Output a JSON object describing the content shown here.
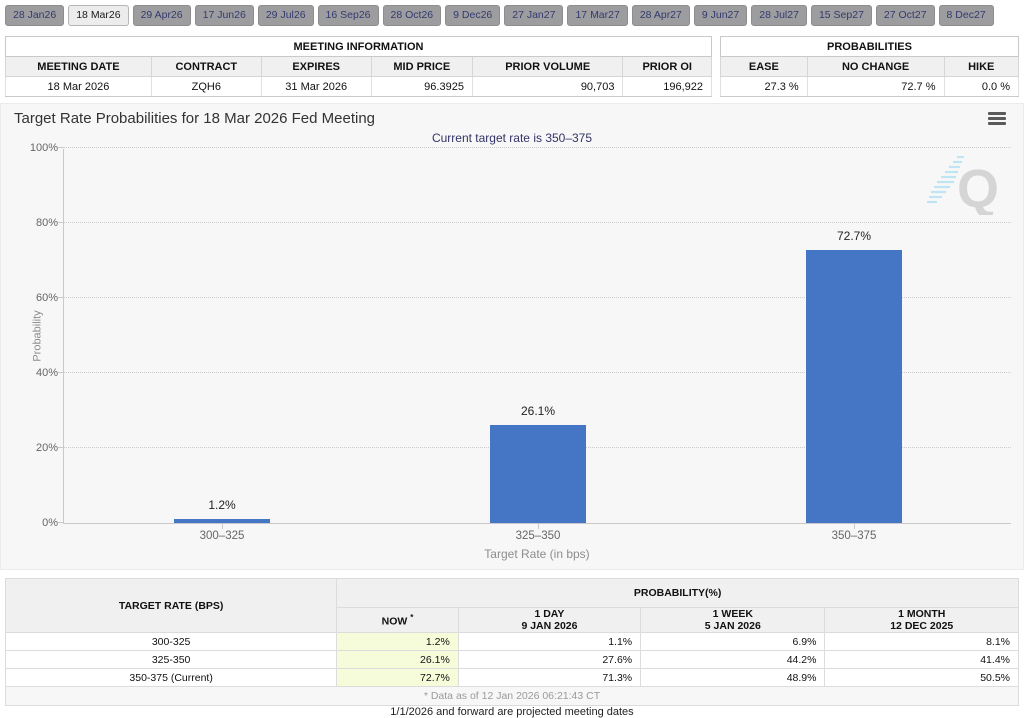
{
  "tabs": {
    "items": [
      {
        "label": "28 Jan26",
        "selected": false
      },
      {
        "label": "18 Mar26",
        "selected": true
      },
      {
        "label": "29 Apr26",
        "selected": false
      },
      {
        "label": "17 Jun26",
        "selected": false
      },
      {
        "label": "29 Jul26",
        "selected": false
      },
      {
        "label": "16 Sep26",
        "selected": false
      },
      {
        "label": "28 Oct26",
        "selected": false
      },
      {
        "label": "9 Dec26",
        "selected": false
      },
      {
        "label": "27 Jan27",
        "selected": false
      },
      {
        "label": "17 Mar27",
        "selected": false
      },
      {
        "label": "28 Apr27",
        "selected": false
      },
      {
        "label": "9 Jun27",
        "selected": false
      },
      {
        "label": "28 Jul27",
        "selected": false
      },
      {
        "label": "15 Sep27",
        "selected": false
      },
      {
        "label": "27 Oct27",
        "selected": false
      },
      {
        "label": "8 Dec27",
        "selected": false
      }
    ]
  },
  "meeting_info": {
    "title": "MEETING INFORMATION",
    "columns": [
      "MEETING DATE",
      "CONTRACT",
      "EXPIRES",
      "MID PRICE",
      "PRIOR VOLUME",
      "PRIOR OI"
    ],
    "row": [
      "18 Mar 2026",
      "ZQH6",
      "31 Mar 2026",
      "96.3925",
      "90,703",
      "196,922"
    ]
  },
  "probabilities": {
    "title": "PROBABILITIES",
    "columns": [
      "EASE",
      "NO CHANGE",
      "HIKE"
    ],
    "row": [
      "27.3 %",
      "72.7 %",
      "0.0 %"
    ]
  },
  "chart_data": {
    "type": "bar",
    "title": "Target Rate Probabilities for 18 Mar 2026 Fed Meeting",
    "subtitle": "Current target rate is 350–375",
    "categories": [
      "300–325",
      "325–350",
      "350–375"
    ],
    "values": [
      1.2,
      26.1,
      72.7
    ],
    "labels": [
      "1.2%",
      "26.1%",
      "72.7%"
    ],
    "xlabel": "Target Rate (in bps)",
    "ylabel": "Probability",
    "ylim": [
      0,
      100
    ],
    "yticks": [
      "0%",
      "20%",
      "40%",
      "60%",
      "80%",
      "100%"
    ],
    "bar_color": "#4576c6",
    "grid": true,
    "legend": "none"
  },
  "history_table": {
    "rate_header": "TARGET RATE (BPS)",
    "group_header": "PROBABILITY(%)",
    "sub_columns": [
      {
        "line1": "NOW",
        "sup": "*",
        "line2": ""
      },
      {
        "line1": "1 DAY",
        "line2": "9 JAN 2026"
      },
      {
        "line1": "1 WEEK",
        "line2": "5 JAN 2026"
      },
      {
        "line1": "1 MONTH",
        "line2": "12 DEC 2025"
      }
    ],
    "rows": [
      [
        "300-325",
        "1.2%",
        "1.1%",
        "6.9%",
        "8.1%"
      ],
      [
        "325-350",
        "26.1%",
        "27.6%",
        "44.2%",
        "41.4%"
      ],
      [
        "350-375 (Current)",
        "72.7%",
        "71.3%",
        "48.9%",
        "50.5%"
      ]
    ],
    "footnote": "* Data as of 12 Jan 2026 06:21:43 CT"
  },
  "footer_note": "1/1/2026 and forward are projected meeting dates",
  "colors": {
    "bar": "#4576c6",
    "now_column_bg": "#f6fbda",
    "subtitle": "#333366",
    "tab_bg": "#9d9da0",
    "tab_selected_bg": "#ececec",
    "chart_bg": "#f7f7f7"
  }
}
